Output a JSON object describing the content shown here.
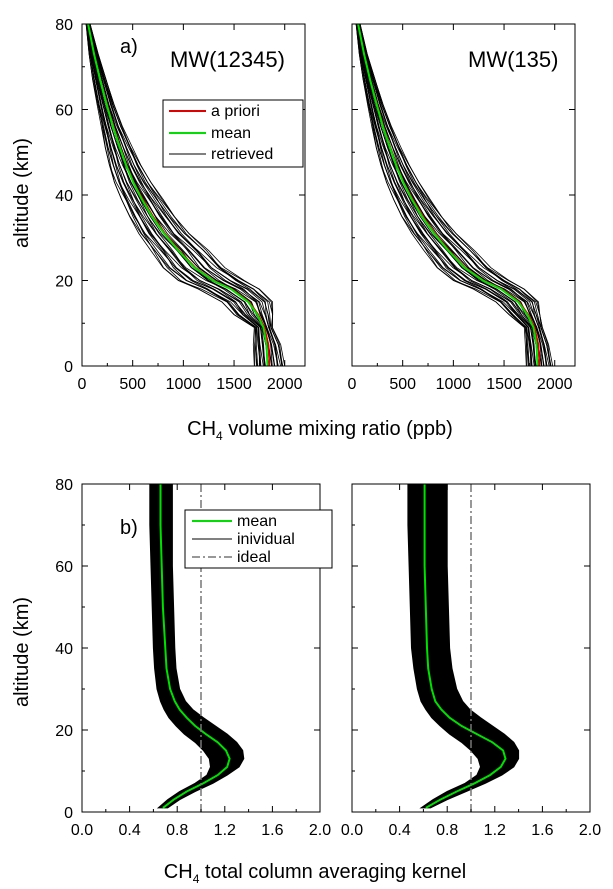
{
  "colors": {
    "a_priori": "#e00000",
    "mean": "#00e000",
    "retrieved": "#000000",
    "individual_band": "#000000",
    "ideal": "#777777"
  },
  "chart_data": [
    {
      "type": "line",
      "panel_label": "a)",
      "title": "MW(12345)",
      "xlabel_main": "CH",
      "xlabel_sub": "4",
      "xlabel_rest": " volume mixing ratio (ppb)",
      "ylabel": "altitude (km)",
      "xlim": [
        0,
        2200
      ],
      "ylim": [
        0,
        80
      ],
      "xticks": [
        "0",
        "500",
        "1000",
        "1500",
        "2000"
      ],
      "yticks": [
        "0",
        "20",
        "40",
        "60",
        "80"
      ],
      "legend_position": "upper-center",
      "legend": [
        "a priori",
        "mean",
        "retrieved"
      ],
      "series": [
        {
          "name": "a priori",
          "style": "red solid",
          "x": [
            1850,
            1840,
            1800,
            1740,
            1650,
            1480,
            1300,
            1120,
            960,
            820,
            700,
            600,
            510,
            440,
            380,
            310,
            250,
            180,
            120,
            60
          ],
          "y": [
            0,
            5,
            9,
            12,
            15,
            18,
            20,
            23,
            27,
            31,
            35,
            39,
            43,
            47,
            51,
            56,
            61,
            67,
            73,
            80
          ]
        },
        {
          "name": "mean",
          "style": "green solid",
          "x": [
            1830,
            1820,
            1790,
            1730,
            1640,
            1470,
            1290,
            1110,
            950,
            810,
            690,
            590,
            505,
            435,
            375,
            305,
            245,
            178,
            118,
            60
          ],
          "y": [
            0,
            5,
            9,
            12,
            15,
            18,
            20,
            23,
            27,
            31,
            35,
            39,
            43,
            47,
            51,
            56,
            61,
            67,
            73,
            80
          ]
        }
      ],
      "retrieved_spread": {
        "name": "retrieved",
        "y": [
          0,
          5,
          9,
          12,
          15,
          18,
          20,
          23,
          27,
          31,
          35,
          39,
          43,
          47,
          51,
          56,
          61,
          67,
          73,
          80
        ],
        "low": [
          1700,
          1690,
          1700,
          1500,
          1380,
          1150,
          950,
          800,
          680,
          560,
          470,
          390,
          320,
          270,
          230,
          190,
          150,
          105,
          70,
          40
        ],
        "high": [
          2000,
          1960,
          1880,
          1890,
          1880,
          1750,
          1600,
          1410,
          1250,
          1060,
          920,
          800,
          680,
          580,
          500,
          400,
          320,
          240,
          160,
          80
        ]
      }
    },
    {
      "type": "line",
      "panel_label": "",
      "title": "MW(135)",
      "xlim": [
        0,
        2200
      ],
      "ylim": [
        0,
        80
      ],
      "xticks": [
        "0",
        "500",
        "1000",
        "1500",
        "2000"
      ],
      "series": [
        {
          "name": "a priori",
          "style": "red solid",
          "x": [
            1850,
            1840,
            1800,
            1740,
            1650,
            1480,
            1300,
            1120,
            960,
            820,
            700,
            600,
            510,
            440,
            380,
            310,
            250,
            180,
            120,
            60
          ],
          "y": [
            0,
            5,
            9,
            12,
            15,
            18,
            20,
            23,
            27,
            31,
            35,
            39,
            43,
            47,
            51,
            56,
            61,
            67,
            73,
            80
          ]
        },
        {
          "name": "mean",
          "style": "green solid",
          "x": [
            1830,
            1820,
            1790,
            1730,
            1640,
            1470,
            1290,
            1110,
            950,
            810,
            690,
            590,
            505,
            435,
            375,
            305,
            245,
            178,
            118,
            60
          ],
          "y": [
            0,
            5,
            9,
            12,
            15,
            18,
            20,
            23,
            27,
            31,
            35,
            39,
            43,
            47,
            51,
            56,
            61,
            67,
            73,
            80
          ]
        }
      ],
      "retrieved_spread": {
        "name": "retrieved",
        "y": [
          0,
          5,
          9,
          12,
          15,
          18,
          20,
          23,
          27,
          31,
          35,
          39,
          43,
          47,
          51,
          56,
          61,
          67,
          73,
          80
        ],
        "low": [
          1720,
          1710,
          1700,
          1550,
          1420,
          1200,
          1000,
          840,
          710,
          590,
          490,
          410,
          340,
          285,
          240,
          195,
          155,
          110,
          72,
          40
        ],
        "high": [
          1980,
          1940,
          1880,
          1860,
          1840,
          1700,
          1550,
          1370,
          1210,
          1030,
          890,
          770,
          660,
          565,
          485,
          390,
          310,
          230,
          150,
          80
        ]
      }
    },
    {
      "type": "area",
      "panel_label": "b)",
      "xlabel_main": "CH",
      "xlabel_sub": "4",
      "xlabel_rest": " total column averaging kernel",
      "ylabel": "altitude (km)",
      "xlim": [
        0.0,
        2.0
      ],
      "ylim": [
        0,
        80
      ],
      "xticks": [
        "0.0",
        "0.4",
        "0.8",
        "1.2",
        "1.6",
        "2.0"
      ],
      "yticks": [
        "0",
        "20",
        "40",
        "60",
        "80"
      ],
      "legend_position": "upper-center",
      "legend": [
        "mean",
        "inividual",
        "ideal"
      ],
      "band": {
        "name": "inividual",
        "y": [
          1,
          3,
          5,
          7,
          9,
          11,
          13,
          15,
          17,
          19,
          21,
          23,
          25,
          27,
          30,
          35,
          40,
          50,
          60,
          70,
          80
        ],
        "low": [
          0.64,
          0.72,
          0.82,
          0.95,
          1.05,
          1.08,
          1.07,
          1.02,
          0.95,
          0.86,
          0.79,
          0.73,
          0.69,
          0.66,
          0.63,
          0.61,
          0.6,
          0.59,
          0.58,
          0.57,
          0.57
        ],
        "high": [
          0.72,
          0.82,
          0.95,
          1.1,
          1.22,
          1.32,
          1.36,
          1.35,
          1.3,
          1.22,
          1.12,
          1.02,
          0.93,
          0.87,
          0.82,
          0.79,
          0.78,
          0.77,
          0.76,
          0.76,
          0.76
        ]
      },
      "series": [
        {
          "name": "mean",
          "style": "green solid",
          "x": [
            0.68,
            0.77,
            0.88,
            1.02,
            1.14,
            1.22,
            1.24,
            1.21,
            1.14,
            1.04,
            0.95,
            0.88,
            0.82,
            0.78,
            0.74,
            0.71,
            0.7,
            0.68,
            0.67,
            0.66,
            0.66
          ],
          "y": [
            1,
            3,
            5,
            7,
            9,
            11,
            13,
            15,
            17,
            19,
            21,
            23,
            25,
            27,
            30,
            35,
            40,
            50,
            60,
            70,
            80
          ]
        },
        {
          "name": "ideal",
          "style": "gray dash-dot",
          "x": [
            1.0,
            1.0
          ],
          "y": [
            0,
            80
          ]
        }
      ]
    },
    {
      "type": "area",
      "panel_label": "",
      "xlim": [
        0.0,
        2.0
      ],
      "ylim": [
        0,
        80
      ],
      "xticks": [
        "0.0",
        "0.4",
        "0.8",
        "1.2",
        "1.6",
        "2.0"
      ],
      "band": {
        "name": "inividual",
        "y": [
          1,
          3,
          5,
          7,
          9,
          11,
          13,
          15,
          17,
          19,
          21,
          23,
          25,
          27,
          30,
          35,
          40,
          50,
          60,
          70,
          80
        ],
        "low": [
          0.58,
          0.68,
          0.8,
          0.95,
          1.05,
          1.08,
          1.06,
          1.0,
          0.92,
          0.82,
          0.74,
          0.67,
          0.62,
          0.58,
          0.55,
          0.52,
          0.5,
          0.49,
          0.48,
          0.47,
          0.47
        ],
        "high": [
          0.66,
          0.8,
          0.96,
          1.12,
          1.26,
          1.36,
          1.4,
          1.4,
          1.36,
          1.28,
          1.18,
          1.08,
          0.99,
          0.93,
          0.88,
          0.84,
          0.82,
          0.81,
          0.8,
          0.8,
          0.8
        ]
      },
      "series": [
        {
          "name": "mean",
          "style": "green solid",
          "x": [
            0.62,
            0.74,
            0.88,
            1.03,
            1.16,
            1.25,
            1.29,
            1.27,
            1.18,
            1.05,
            0.92,
            0.82,
            0.75,
            0.7,
            0.67,
            0.64,
            0.63,
            0.62,
            0.61,
            0.61,
            0.61
          ],
          "y": [
            1,
            3,
            5,
            7,
            9,
            11,
            13,
            15,
            17,
            19,
            21,
            23,
            25,
            27,
            30,
            35,
            40,
            50,
            60,
            70,
            80
          ]
        },
        {
          "name": "ideal",
          "style": "gray dash-dot",
          "x": [
            1.0,
            1.0
          ],
          "y": [
            0,
            80
          ]
        }
      ]
    }
  ]
}
